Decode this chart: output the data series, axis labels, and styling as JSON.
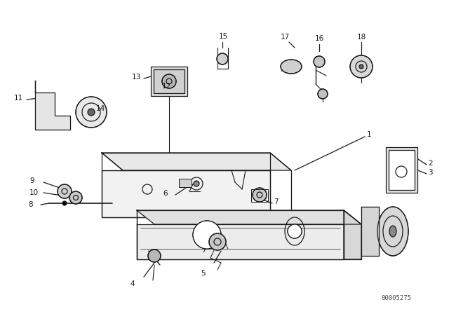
{
  "bg_color": "#ffffff",
  "line_color": "#1a1a1a",
  "fig_width": 6.4,
  "fig_height": 4.48,
  "dpi": 100,
  "watermark": "00005275",
  "watermark_fontsize": 6.5
}
